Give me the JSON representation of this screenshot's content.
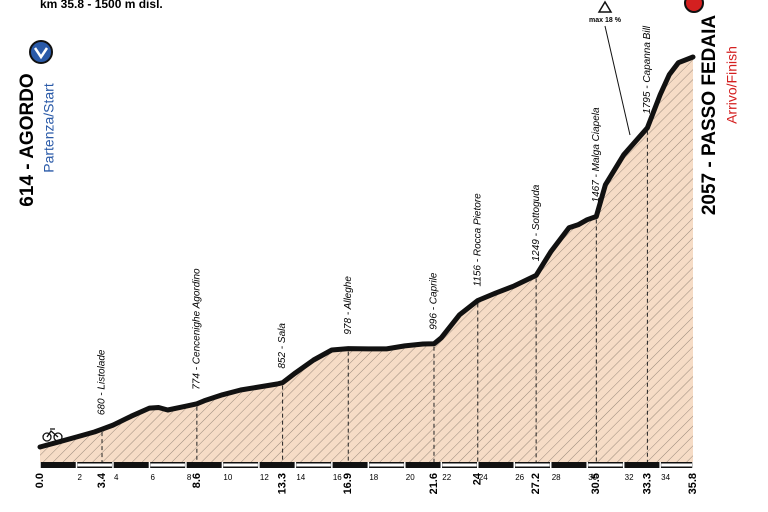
{
  "chart_data": {
    "type": "area",
    "title": "km 35.8 - 1500 m disl.",
    "start_label": "614 - AGORDO",
    "start_sublabel": "Partenza/Start",
    "finish_label": "2057 - PASSO FEDAIA",
    "finish_sublabel": "Arrivo/Finish",
    "annotation": "max 18 %",
    "x": [
      0,
      1,
      2,
      3,
      3.4,
      4,
      5,
      6,
      6.5,
      7,
      8,
      8.6,
      9,
      10,
      11,
      12,
      13,
      13.3,
      14,
      15,
      16,
      16.9,
      18,
      19,
      20,
      21,
      21.6,
      22,
      23,
      24,
      25,
      26,
      27.2,
      28,
      29,
      29.5,
      30,
      30.5,
      31,
      32,
      33.3,
      34,
      34.5,
      35,
      35.8
    ],
    "values": [
      614,
      632,
      651,
      670,
      680,
      695,
      728,
      758,
      760,
      751,
      765,
      774,
      785,
      807,
      825,
      836,
      847,
      852,
      888,
      936,
      973,
      978,
      977,
      977,
      988,
      995,
      996,
      1018,
      1103,
      1156,
      1184,
      1210,
      1249,
      1336,
      1425,
      1436,
      1455,
      1467,
      1584,
      1695,
      1795,
      1918,
      1992,
      2036,
      2057
    ],
    "xlim": [
      0,
      35.8
    ],
    "xticks": [
      {
        "value": 0,
        "label": "0.0"
      },
      2,
      4,
      6,
      8,
      10,
      12,
      14,
      16,
      18,
      20,
      22,
      24,
      26,
      28,
      30,
      32,
      34,
      35.8
    ],
    "waypoints": [
      {
        "label": "680 - Listolade",
        "km": 3.4
      },
      {
        "label": "774 - Cencenighe Agordino",
        "km": 8.6
      },
      {
        "label": "852 - Sala",
        "km": 13.3
      },
      {
        "label": "978 - Alleghe",
        "km": 16.9
      },
      {
        "label": "996 - Caprile",
        "km": 21.6
      },
      {
        "label": "1156 - Rocca Pietore",
        "km": 24.0
      },
      {
        "label": "1249 - Sottoguda",
        "km": 27.2
      },
      {
        "label": "1467 - Malga Ciapela",
        "km": 30.5
      },
      {
        "label": "1795 - Capanna Bill",
        "km": 33.3
      }
    ],
    "fill_color": "#f6dcc6",
    "line_color": "#111111"
  }
}
